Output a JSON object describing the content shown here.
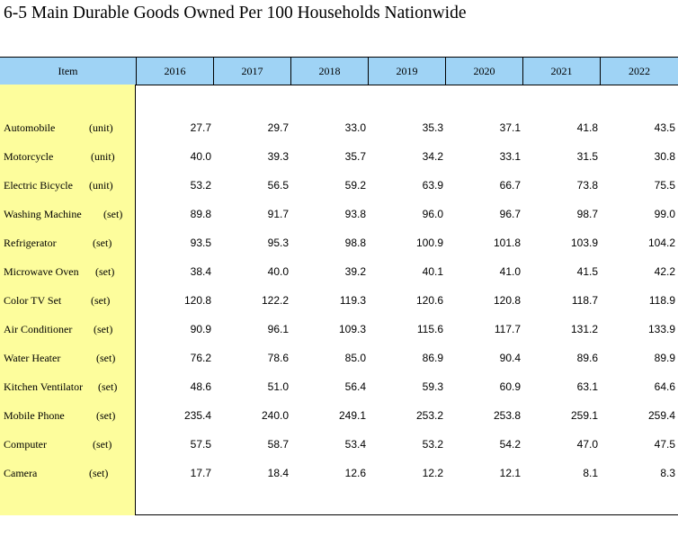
{
  "title": "6-5  Main Durable Goods Owned Per 100 Households Nationwide",
  "header": {
    "item": "Item",
    "years": [
      "2016",
      "2017",
      "2018",
      "2019",
      "2020",
      "2021",
      "2022"
    ]
  },
  "rows": [
    {
      "item": "Automobile",
      "unit": "(unit)",
      "values": [
        "27.7",
        "29.7",
        "33.0",
        "35.3",
        "37.1",
        "41.8",
        "43.5"
      ]
    },
    {
      "item": "Motorcycle",
      "unit": "(unit)",
      "values": [
        "40.0",
        "39.3",
        "35.7",
        "34.2",
        "33.1",
        "31.5",
        "30.8"
      ]
    },
    {
      "item": "Electric Bicycle",
      "unit": "(unit)",
      "values": [
        "53.2",
        "56.5",
        "59.2",
        "63.9",
        "66.7",
        "73.8",
        "75.5"
      ]
    },
    {
      "item": "Washing Machine",
      "unit": "(set)",
      "values": [
        "89.8",
        "91.7",
        "93.8",
        "96.0",
        "96.7",
        "98.7",
        "99.0"
      ]
    },
    {
      "item": "Refrigerator",
      "unit": "(set)",
      "values": [
        "93.5",
        "95.3",
        "98.8",
        "100.9",
        "101.8",
        "103.9",
        "104.2"
      ]
    },
    {
      "item": "Microwave Oven",
      "unit": "(set)",
      "values": [
        "38.4",
        "40.0",
        "39.2",
        "40.1",
        "41.0",
        "41.5",
        "42.2"
      ]
    },
    {
      "item": "Color TV Set",
      "unit": "(set)",
      "values": [
        "120.8",
        "122.2",
        "119.3",
        "120.6",
        "120.8",
        "118.7",
        "118.9"
      ]
    },
    {
      "item": "Air Conditioner",
      "unit": "(set)",
      "values": [
        "90.9",
        "96.1",
        "109.3",
        "115.6",
        "117.7",
        "131.2",
        "133.9"
      ]
    },
    {
      "item": "Water Heater",
      "unit": "(set)",
      "values": [
        "76.2",
        "78.6",
        "85.0",
        "86.9",
        "90.4",
        "89.6",
        "89.9"
      ]
    },
    {
      "item": "Kitchen Ventilator",
      "unit": "(set)",
      "values": [
        "48.6",
        "51.0",
        "56.4",
        "59.3",
        "60.9",
        "63.1",
        "64.6"
      ]
    },
    {
      "item": "Mobile Phone",
      "unit": "(set)",
      "values": [
        "235.4",
        "240.0",
        "249.1",
        "253.2",
        "253.8",
        "259.1",
        "259.4"
      ]
    },
    {
      "item": "Computer",
      "unit": "(set)",
      "values": [
        "57.5",
        "58.7",
        "53.4",
        "53.2",
        "54.2",
        "47.0",
        "47.5"
      ]
    },
    {
      "item": "Camera",
      "unit": "(set)",
      "values": [
        "17.7",
        "18.4",
        "12.6",
        "12.2",
        "12.1",
        "8.1",
        "8.3"
      ]
    }
  ]
}
